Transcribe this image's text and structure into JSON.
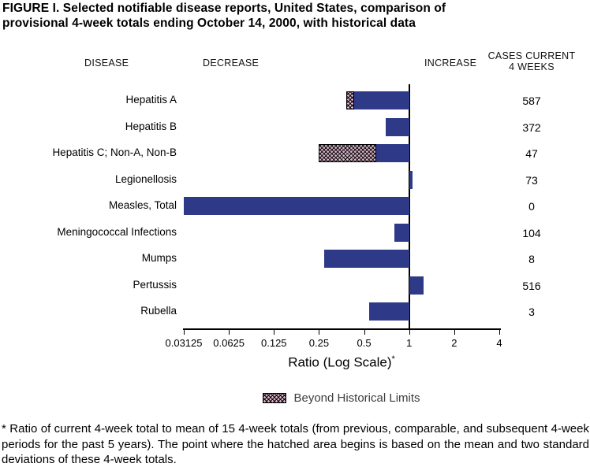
{
  "title": "FIGURE I. Selected notifiable disease reports, United States, comparison of provisional 4-week totals ending October 14, 2000, with historical data",
  "headers": {
    "disease": "DISEASE",
    "decrease": "DECREASE",
    "increase": "INCREASE",
    "cases_line1": "CASES CURRENT",
    "cases_line2": "4 WEEKS"
  },
  "chart_data": {
    "type": "bar",
    "orientation": "horizontal",
    "scale": "log2",
    "title": "Selected notifiable disease reports, ratio of provisional 4-week totals to historical mean",
    "xlabel": "Ratio (Log Scale)",
    "xlabel_sup": "*",
    "xlim": [
      0.03125,
      4
    ],
    "baseline": 1,
    "grid": false,
    "axis_ticks": [
      0.03125,
      0.0625,
      0.125,
      0.25,
      0.5,
      1,
      2,
      4
    ],
    "tick_labels": [
      "0.03125",
      "0.0625",
      "0.125",
      "0.25",
      "0.5",
      "1",
      "2",
      "4"
    ],
    "bar_color": "#2e3a87",
    "hatch_color": "#d9b3c9",
    "rows": [
      {
        "disease": "Hepatitis A",
        "cases": "587",
        "ratio": 0.38,
        "beyond_limit": 0.43
      },
      {
        "disease": "Hepatitis B",
        "cases": "372",
        "ratio": 0.7,
        "beyond_limit": null
      },
      {
        "disease": "Hepatitis C; Non-A, Non-B",
        "cases": "47",
        "ratio": 0.25,
        "beyond_limit": 0.6
      },
      {
        "disease": "Legionellosis",
        "cases": "73",
        "ratio": 1.05,
        "beyond_limit": null
      },
      {
        "disease": "Measles, Total",
        "cases": "0",
        "ratio": 0.03125,
        "beyond_limit": null
      },
      {
        "disease": "Meningococcal Infections",
        "cases": "104",
        "ratio": 0.8,
        "beyond_limit": null
      },
      {
        "disease": "Mumps",
        "cases": "8",
        "ratio": 0.27,
        "beyond_limit": null
      },
      {
        "disease": "Pertussis",
        "cases": "516",
        "ratio": 1.25,
        "beyond_limit": null
      },
      {
        "disease": "Rubella",
        "cases": "3",
        "ratio": 0.54,
        "beyond_limit": null
      }
    ]
  },
  "legend": {
    "label": "Beyond Historical Limits"
  },
  "footnote": "* Ratio of current 4-week total to mean of 15 4-week totals (from previous, comparable, and subsequent 4-week periods for the past 5 years). The point where the hatched area begins is based on the mean and two standard deviations of these 4-week totals."
}
